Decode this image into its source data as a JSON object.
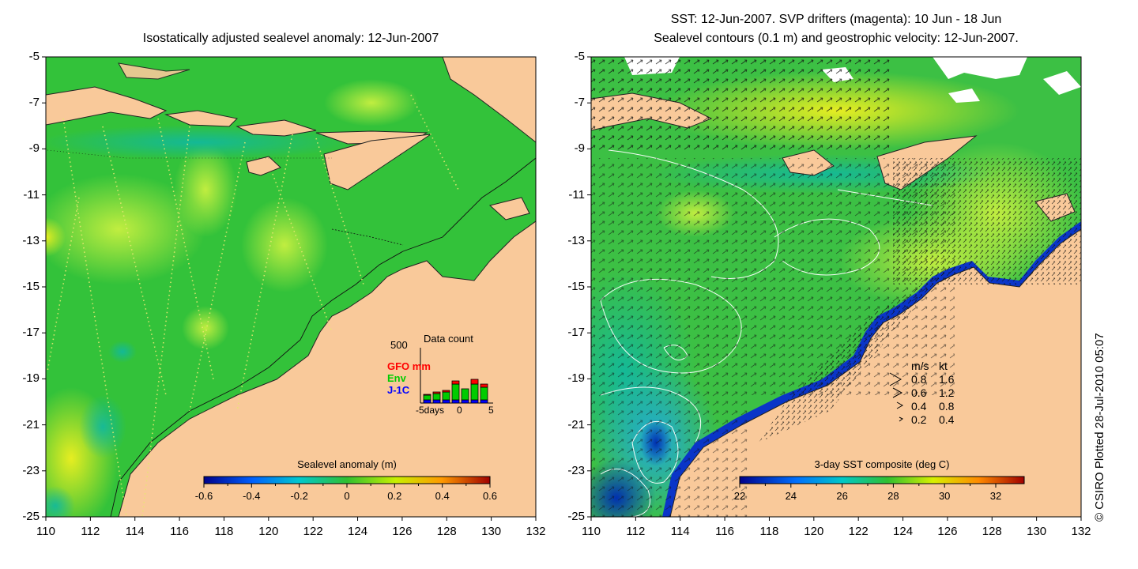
{
  "left_map": {
    "title": "Isostatically adjusted sealevel anomaly: 12-Jun-2007",
    "y_ticks": [
      "-5",
      "-7",
      "-9",
      "-11",
      "-13",
      "-15",
      "-17",
      "-19",
      "-21",
      "-23",
      "-25"
    ],
    "x_ticks": [
      "110",
      "112",
      "114",
      "116",
      "118",
      "120",
      "122",
      "124",
      "126",
      "128",
      "130",
      "132"
    ],
    "colorbar": {
      "title": "Sealevel anomaly (m)",
      "ticks": [
        "-0.6",
        "-0.4",
        "-0.2",
        "0",
        "0.2",
        "0.4",
        "0.6"
      ]
    },
    "data_count": {
      "title": "Data count",
      "y_max": "500",
      "series": [
        "GFO mm",
        "Env",
        "J-1C"
      ],
      "series_colors": [
        "#ff0000",
        "#00cc00",
        "#0000ff"
      ],
      "x_labels": [
        "-5days",
        "0",
        "5"
      ]
    }
  },
  "right_map": {
    "title_line1": "SST: 12-Jun-2007. SVP drifters (magenta): 10 Jun - 18 Jun",
    "title_line2": "Sealevel contours (0.1 m) and geostrophic velocity: 12-Jun-2007.",
    "y_ticks": [
      "-5",
      "-7",
      "-9",
      "-11",
      "-13",
      "-15",
      "-17",
      "-19",
      "-21",
      "-23",
      "-25"
    ],
    "x_ticks": [
      "110",
      "112",
      "114",
      "116",
      "118",
      "120",
      "122",
      "124",
      "126",
      "128",
      "130",
      "132"
    ],
    "colorbar": {
      "title": "3-day SST composite (deg C)",
      "ticks": [
        "22",
        "24",
        "26",
        "28",
        "30",
        "32"
      ]
    },
    "velocity_legend": {
      "header_ms": "m/s",
      "header_kt": "kt",
      "rows": [
        {
          "ms": "0.8",
          "kt": "1.6"
        },
        {
          "ms": "0.6",
          "kt": "1.2"
        },
        {
          "ms": "0.4",
          "kt": "0.8"
        },
        {
          "ms": "0.2",
          "kt": "0.4"
        }
      ]
    }
  },
  "credit": "© CSIRO Plotted 28-Jul-2010 05:07",
  "colors": {
    "land": "#f9c99a",
    "sea_left": "#33cc33",
    "sea_right": "#40c048"
  }
}
